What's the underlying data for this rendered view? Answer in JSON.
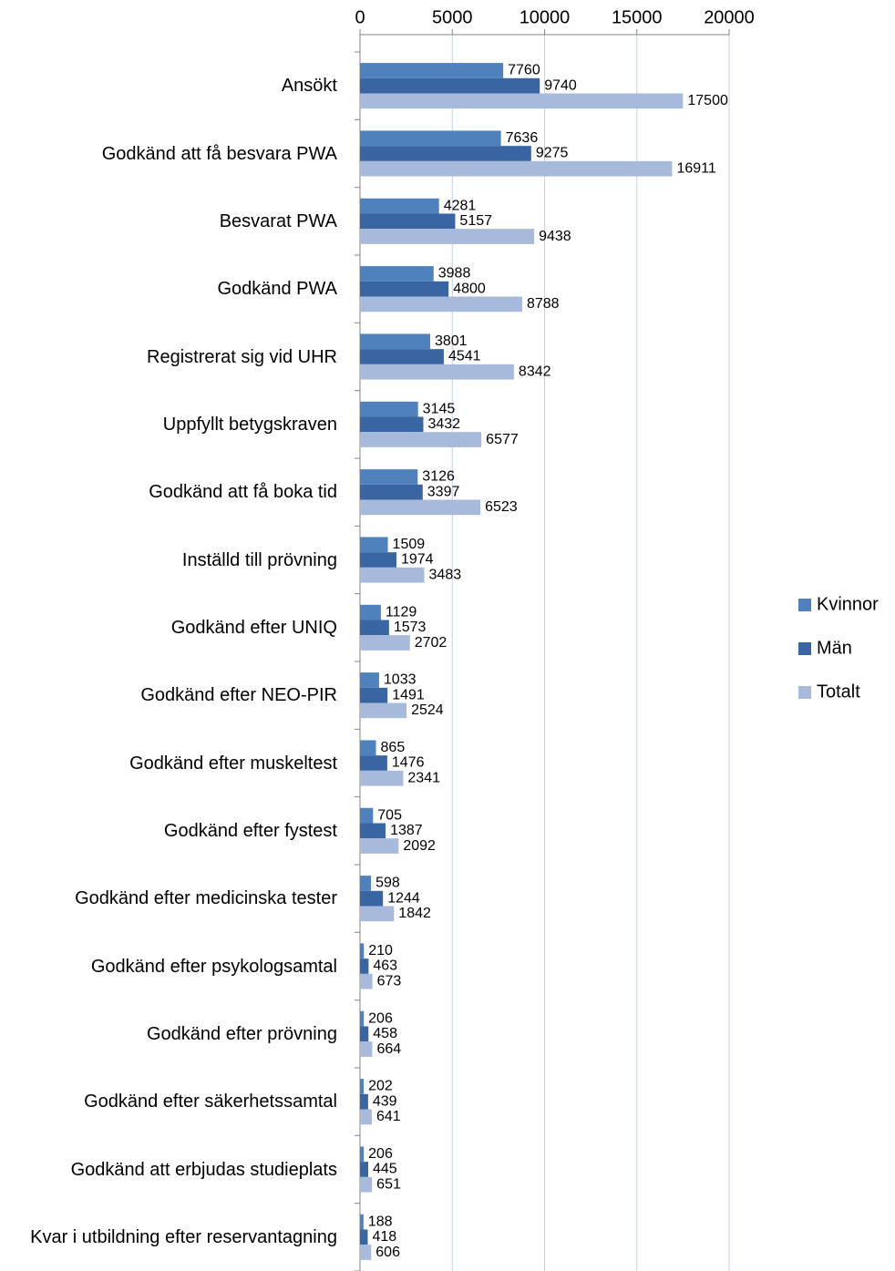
{
  "chart_data": {
    "type": "bar",
    "orientation": "horizontal",
    "categories": [
      "Ansökt",
      "Godkänd att få besvara PWA",
      "Besvarat PWA",
      "Godkänd PWA",
      "Registrerat sig vid UHR",
      "Uppfyllt betygskraven",
      "Godkänd att få boka tid",
      "Inställd till prövning",
      "Godkänd efter UNIQ",
      "Godkänd efter NEO-PIR",
      "Godkänd efter muskeltest",
      "Godkänd efter fystest",
      "Godkänd efter medicinska tester",
      "Godkänd efter psykologsamtal",
      "Godkänd efter prövning",
      "Godkänd efter säkerhetssamtal",
      "Godkänd att erbjudas studieplats",
      "Kvar i utbildning efter reservantagning"
    ],
    "series": [
      {
        "name": "Kvinnor",
        "color": "#4f81bd",
        "values": [
          7760,
          7636,
          4281,
          3988,
          3801,
          3145,
          3126,
          1509,
          1129,
          1033,
          865,
          705,
          598,
          210,
          206,
          202,
          206,
          188
        ]
      },
      {
        "name": "Män",
        "color": "#3a65a3",
        "values": [
          9740,
          9275,
          5157,
          4800,
          4541,
          3432,
          3397,
          1974,
          1573,
          1491,
          1476,
          1387,
          1244,
          463,
          458,
          439,
          445,
          418
        ]
      },
      {
        "name": "Totalt",
        "color": "#a8badb",
        "values": [
          17500,
          16911,
          9438,
          8788,
          8342,
          6577,
          6523,
          3483,
          2702,
          2524,
          2341,
          2092,
          1842,
          673,
          664,
          641,
          651,
          606
        ]
      }
    ],
    "xlim": [
      0,
      20000
    ],
    "xticks": [
      0,
      5000,
      10000,
      15000,
      20000
    ],
    "grid": true,
    "legend": "right"
  }
}
